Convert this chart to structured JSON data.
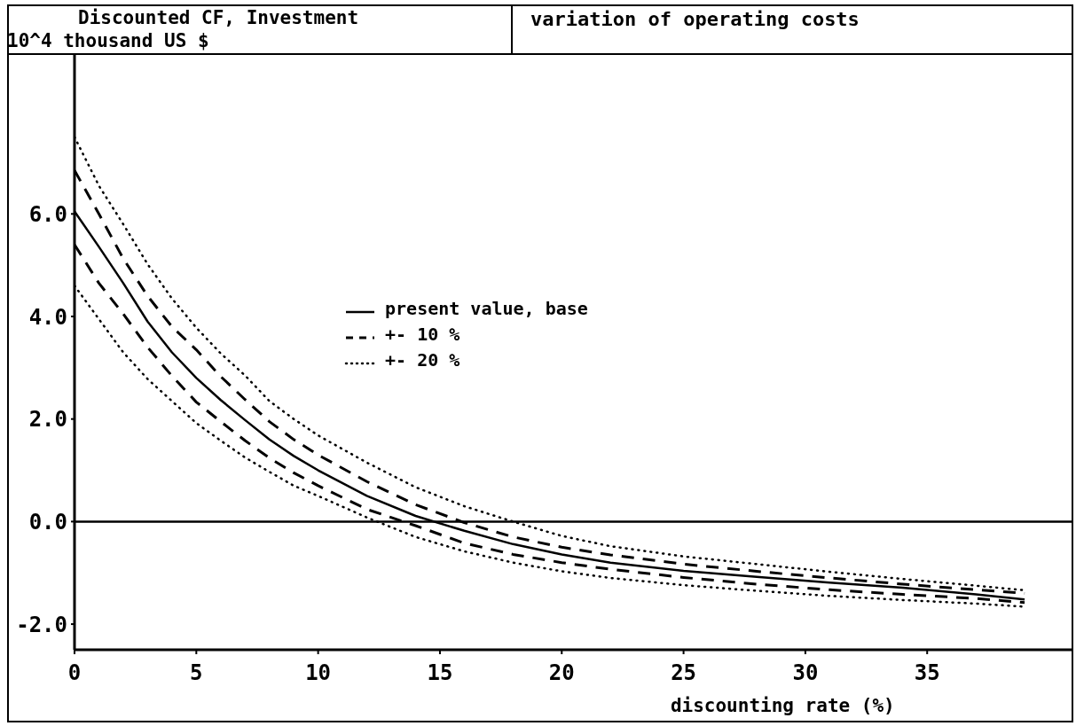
{
  "chart_data": {
    "type": "line",
    "title": "variation of operating costs",
    "ylabel": "Discounted CF, Investment\n10^4 thousand US $",
    "xlabel": "discounting rate (%)",
    "x": [
      0,
      1,
      2,
      3,
      4,
      5,
      6,
      7,
      8,
      9,
      10,
      12,
      14,
      16,
      18,
      20,
      22,
      25,
      28,
      31,
      34,
      37,
      39
    ],
    "series": [
      {
        "name": "present value, base",
        "color": "#000000",
        "line_style": "solid",
        "values": [
          6.05,
          5.36,
          4.65,
          3.9,
          3.3,
          2.8,
          2.37,
          1.98,
          1.6,
          1.28,
          1.0,
          0.5,
          0.11,
          -0.18,
          -0.44,
          -0.64,
          -0.8,
          -0.96,
          -1.08,
          -1.19,
          -1.29,
          -1.42,
          -1.52
        ]
      },
      {
        "name": "+- 10 %",
        "color": "#000000",
        "line_style": "dashed",
        "values": [
          6.85,
          6.0,
          5.13,
          4.4,
          3.8,
          3.35,
          2.83,
          2.38,
          1.95,
          1.6,
          1.3,
          0.78,
          0.33,
          -0.02,
          -0.3,
          -0.5,
          -0.65,
          -0.83,
          -0.97,
          -1.1,
          -1.22,
          -1.33,
          -1.4
        ]
      },
      {
        "color": "#000000",
        "line_style": "dashed",
        "values": [
          5.4,
          4.65,
          4.05,
          3.4,
          2.84,
          2.33,
          1.95,
          1.58,
          1.24,
          0.95,
          0.7,
          0.24,
          -0.08,
          -0.42,
          -0.64,
          -0.8,
          -0.93,
          -1.09,
          -1.22,
          -1.33,
          -1.42,
          -1.5,
          -1.58
        ]
      },
      {
        "name": "+- 20 %",
        "color": "#000000",
        "line_style": "dotted",
        "values": [
          7.5,
          6.55,
          5.8,
          5.02,
          4.35,
          3.78,
          3.28,
          2.85,
          2.35,
          2.0,
          1.68,
          1.15,
          0.67,
          0.3,
          0.0,
          -0.28,
          -0.48,
          -0.68,
          -0.83,
          -0.98,
          -1.12,
          -1.25,
          -1.34
        ]
      },
      {
        "color": "#000000",
        "line_style": "dotted",
        "values": [
          4.6,
          3.95,
          3.3,
          2.78,
          2.35,
          1.92,
          1.58,
          1.25,
          0.97,
          0.7,
          0.5,
          0.08,
          -0.3,
          -0.58,
          -0.8,
          -0.97,
          -1.1,
          -1.24,
          -1.35,
          -1.45,
          -1.53,
          -1.6,
          -1.66
        ]
      }
    ],
    "xlim": [
      0,
      41
    ],
    "xticks": [
      0,
      5,
      10,
      15,
      20,
      25,
      30,
      35
    ],
    "ylim": [
      -2.5,
      9.1
    ],
    "yticks": [
      {
        "value": -2,
        "label": "-2.0"
      },
      {
        "value": 0,
        "label": "0.0"
      },
      {
        "value": 2,
        "label": "2.0"
      },
      {
        "value": 4,
        "label": "4.0"
      },
      {
        "value": 6,
        "label": "6.0"
      }
    ],
    "ref_lines": [
      {
        "axis": "y",
        "value": 0
      }
    ],
    "legend": "center"
  }
}
